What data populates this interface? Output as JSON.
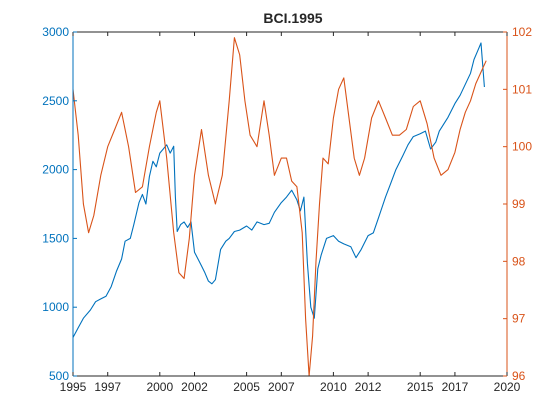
{
  "colors": {
    "left_series": "#0072BD",
    "right_series": "#D95319",
    "axis_box": "#262626"
  },
  "chart_data": {
    "type": "line",
    "title": "BCI.1995",
    "xlabel": "",
    "ylabel": "",
    "xlim": [
      1995,
      2020
    ],
    "x_ticks": [
      1995,
      1997,
      2000,
      2002,
      2005,
      2007,
      2010,
      2012,
      2015,
      2017,
      2020
    ],
    "y_left": {
      "lim": [
        500,
        3000
      ],
      "ticks": [
        500,
        1000,
        1500,
        2000,
        2500,
        3000
      ]
    },
    "y_right": {
      "lim": [
        96,
        102
      ],
      "ticks": [
        96,
        97,
        98,
        99,
        100,
        101,
        102
      ]
    },
    "grid": false,
    "legend": "none",
    "series": [
      {
        "axis": "left",
        "color": "#0072BD",
        "x": [
          1995.0,
          1995.3,
          1995.6,
          1996.0,
          1996.3,
          1996.6,
          1996.9,
          1997.2,
          1997.5,
          1997.8,
          1998.0,
          1998.3,
          1998.5,
          1998.8,
          1999.0,
          1999.2,
          1999.4,
          1999.6,
          1999.8,
          2000.0,
          2000.2,
          2000.4,
          2000.6,
          2000.8,
          2000.9,
          2001.0,
          2001.2,
          2001.4,
          2001.6,
          2001.8,
          2002.0,
          2002.2,
          2002.4,
          2002.6,
          2002.8,
          2003.0,
          2003.2,
          2003.5,
          2003.8,
          2004.0,
          2004.3,
          2004.6,
          2005.0,
          2005.3,
          2005.6,
          2006.0,
          2006.3,
          2006.6,
          2007.0,
          2007.3,
          2007.6,
          2007.9,
          2008.1,
          2008.3,
          2008.5,
          2008.7,
          2008.9,
          2009.1,
          2009.3,
          2009.6,
          2010.0,
          2010.3,
          2010.6,
          2011.0,
          2011.3,
          2011.6,
          2012.0,
          2012.3,
          2012.6,
          2013.0,
          2013.3,
          2013.6,
          2014.0,
          2014.3,
          2014.6,
          2015.0,
          2015.3,
          2015.6,
          2015.9,
          2016.1,
          2016.3,
          2016.6,
          2017.0,
          2017.3,
          2017.6,
          2017.9,
          2018.1,
          2018.3,
          2018.5,
          2018.7
        ],
        "y": [
          780,
          850,
          920,
          980,
          1040,
          1060,
          1080,
          1150,
          1260,
          1350,
          1480,
          1500,
          1600,
          1760,
          1820,
          1750,
          1950,
          2060,
          2020,
          2120,
          2150,
          2180,
          2120,
          2170,
          1800,
          1550,
          1600,
          1620,
          1580,
          1620,
          1400,
          1350,
          1300,
          1250,
          1190,
          1170,
          1200,
          1420,
          1480,
          1500,
          1550,
          1560,
          1590,
          1560,
          1620,
          1600,
          1610,
          1690,
          1760,
          1800,
          1850,
          1780,
          1700,
          1800,
          1320,
          1000,
          920,
          1280,
          1380,
          1500,
          1520,
          1480,
          1460,
          1440,
          1360,
          1420,
          1520,
          1540,
          1650,
          1800,
          1900,
          2000,
          2100,
          2180,
          2240,
          2260,
          2280,
          2150,
          2200,
          2280,
          2320,
          2380,
          2480,
          2540,
          2620,
          2700,
          2800,
          2860,
          2920,
          2600
        ]
      },
      {
        "axis": "right",
        "color": "#D95319",
        "x": [
          1995.0,
          1995.3,
          1995.6,
          1995.9,
          1996.2,
          1996.6,
          1997.0,
          1997.4,
          1997.8,
          1998.2,
          1998.6,
          1999.0,
          1999.4,
          1999.8,
          2000.0,
          2000.4,
          2000.8,
          2001.1,
          2001.4,
          2001.7,
          2002.0,
          2002.4,
          2002.8,
          2003.2,
          2003.6,
          2004.0,
          2004.3,
          2004.6,
          2004.9,
          2005.2,
          2005.6,
          2006.0,
          2006.3,
          2006.6,
          2007.0,
          2007.3,
          2007.6,
          2007.9,
          2008.2,
          2008.4,
          2008.6,
          2008.8,
          2009.0,
          2009.2,
          2009.4,
          2009.7,
          2010.0,
          2010.3,
          2010.6,
          2010.9,
          2011.2,
          2011.5,
          2011.8,
          2012.2,
          2012.6,
          2013.0,
          2013.4,
          2013.8,
          2014.2,
          2014.6,
          2015.0,
          2015.4,
          2015.8,
          2016.2,
          2016.6,
          2017.0,
          2017.3,
          2017.6,
          2017.9,
          2018.2,
          2018.5,
          2018.8
        ],
        "y": [
          101.0,
          100.2,
          99.0,
          98.5,
          98.8,
          99.5,
          100.0,
          100.3,
          100.6,
          100.0,
          99.2,
          99.3,
          100.0,
          100.6,
          100.8,
          99.8,
          98.5,
          97.8,
          97.7,
          98.4,
          99.5,
          100.3,
          99.5,
          99.0,
          99.5,
          100.8,
          101.9,
          101.6,
          100.8,
          100.2,
          100.0,
          100.8,
          100.2,
          99.5,
          99.8,
          99.8,
          99.4,
          99.3,
          98.5,
          97.0,
          96.0,
          96.7,
          98.0,
          99.0,
          99.8,
          99.7,
          100.5,
          101.0,
          101.2,
          100.5,
          99.8,
          99.5,
          99.8,
          100.5,
          100.8,
          100.5,
          100.2,
          100.2,
          100.3,
          100.7,
          100.8,
          100.4,
          99.8,
          99.5,
          99.6,
          99.9,
          100.3,
          100.6,
          100.8,
          101.1,
          101.3,
          101.5
        ]
      }
    ]
  }
}
